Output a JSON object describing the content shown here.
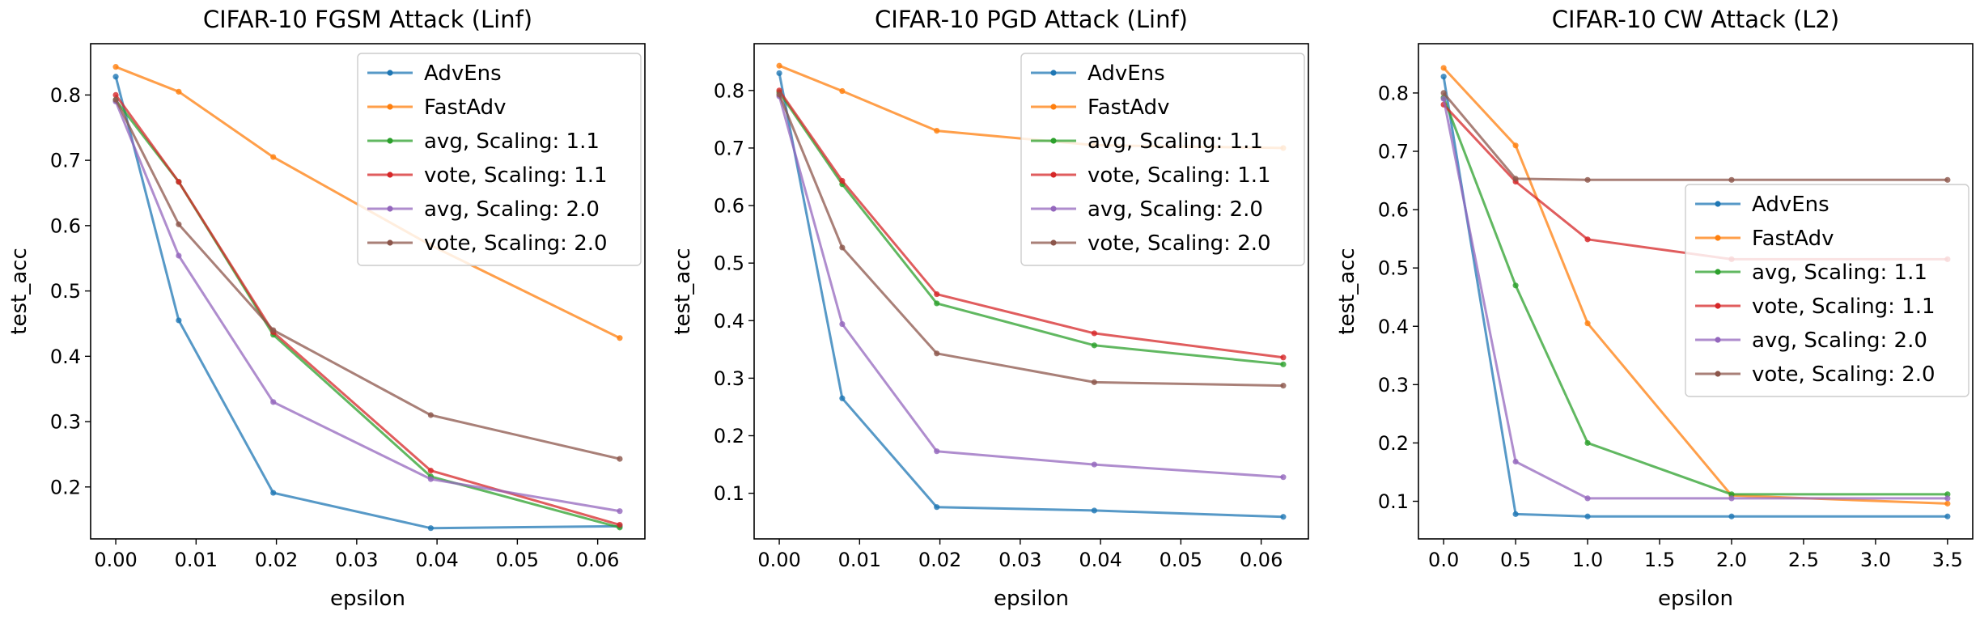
{
  "chart_data": [
    {
      "type": "line",
      "title": "CIFAR-10 FGSM Attack (Linf)",
      "xlabel": "epsilon",
      "ylabel": "test_acc",
      "xlim": [
        -0.00313,
        0.06588
      ],
      "ylim": [
        0.1205,
        0.8785
      ],
      "xticks": [
        "0.00",
        "0.01",
        "0.02",
        "0.03",
        "0.04",
        "0.05",
        "0.06"
      ],
      "yticks": [
        "0.2",
        "0.3",
        "0.4",
        "0.5",
        "0.6",
        "0.7",
        "0.8"
      ],
      "legend_position": "upper right",
      "x": [
        0.0,
        0.00784,
        0.01961,
        0.03922,
        0.06275
      ],
      "series": [
        {
          "name": "AdvEns",
          "color": "#1f77b4",
          "values": [
            0.828,
            0.455,
            0.191,
            0.137,
            0.14
          ]
        },
        {
          "name": "FastAdv",
          "color": "#ff7f0e",
          "values": [
            0.843,
            0.805,
            0.705,
            0.57,
            0.428
          ]
        },
        {
          "name": "avg, Scaling: 1.1",
          "color": "#2ca02c",
          "values": [
            0.792,
            0.667,
            0.433,
            0.216,
            0.138
          ]
        },
        {
          "name": "vote, Scaling: 1.1",
          "color": "#d62728",
          "values": [
            0.8,
            0.667,
            0.437,
            0.225,
            0.142
          ]
        },
        {
          "name": "avg, Scaling: 2.0",
          "color": "#9467bd",
          "values": [
            0.79,
            0.554,
            0.33,
            0.212,
            0.163
          ]
        },
        {
          "name": "vote, Scaling: 2.0",
          "color": "#8c564b",
          "values": [
            0.793,
            0.602,
            0.44,
            0.31,
            0.243
          ]
        }
      ]
    },
    {
      "type": "line",
      "title": "CIFAR-10 PGD Attack (Linf)",
      "xlabel": "epsilon",
      "ylabel": "test_acc",
      "xlim": [
        -0.00313,
        0.06588
      ],
      "ylim": [
        0.0207,
        0.8813
      ],
      "xticks": [
        "0.00",
        "0.01",
        "0.02",
        "0.03",
        "0.04",
        "0.05",
        "0.06"
      ],
      "yticks": [
        "0.1",
        "0.2",
        "0.3",
        "0.4",
        "0.5",
        "0.6",
        "0.7",
        "0.8"
      ],
      "legend_position": "upper right",
      "x": [
        0.0,
        0.00784,
        0.01961,
        0.03922,
        0.06275
      ],
      "series": [
        {
          "name": "AdvEns",
          "color": "#1f77b4",
          "values": [
            0.83,
            0.265,
            0.076,
            0.07,
            0.059
          ]
        },
        {
          "name": "FastAdv",
          "color": "#ff7f0e",
          "values": [
            0.843,
            0.799,
            0.73,
            0.705,
            0.7
          ]
        },
        {
          "name": "avg, Scaling: 1.1",
          "color": "#2ca02c",
          "values": [
            0.797,
            0.637,
            0.43,
            0.357,
            0.324
          ]
        },
        {
          "name": "vote, Scaling: 1.1",
          "color": "#d62728",
          "values": [
            0.8,
            0.643,
            0.446,
            0.378,
            0.336
          ]
        },
        {
          "name": "avg, Scaling: 2.0",
          "color": "#9467bd",
          "values": [
            0.79,
            0.394,
            0.173,
            0.15,
            0.128
          ]
        },
        {
          "name": "vote, Scaling: 2.0",
          "color": "#8c564b",
          "values": [
            0.793,
            0.527,
            0.343,
            0.293,
            0.287
          ]
        }
      ]
    },
    {
      "type": "line",
      "title": "CIFAR-10 CW Attack (L2)",
      "xlabel": "epsilon",
      "ylabel": "test_acc",
      "xlim": [
        -0.175,
        3.675
      ],
      "ylim": [
        0.0355,
        0.8845
      ],
      "xticks": [
        "0.0",
        "0.5",
        "1.0",
        "1.5",
        "2.0",
        "2.5",
        "3.0",
        "3.5"
      ],
      "yticks": [
        "0.1",
        "0.2",
        "0.3",
        "0.4",
        "0.5",
        "0.6",
        "0.7",
        "0.8"
      ],
      "legend_position": "center right",
      "x": [
        0.0,
        0.5,
        1.0,
        2.0,
        3.5
      ],
      "series": [
        {
          "name": "AdvEns",
          "color": "#1f77b4",
          "values": [
            0.828,
            0.078,
            0.074,
            0.074,
            0.074
          ]
        },
        {
          "name": "FastAdv",
          "color": "#ff7f0e",
          "values": [
            0.843,
            0.71,
            0.405,
            0.11,
            0.096
          ]
        },
        {
          "name": "avg, Scaling: 1.1",
          "color": "#2ca02c",
          "values": [
            0.792,
            0.47,
            0.2,
            0.112,
            0.112
          ]
        },
        {
          "name": "vote, Scaling: 1.1",
          "color": "#d62728",
          "values": [
            0.78,
            0.648,
            0.549,
            0.515,
            0.515
          ]
        },
        {
          "name": "avg, Scaling: 2.0",
          "color": "#9467bd",
          "values": [
            0.79,
            0.168,
            0.105,
            0.105,
            0.105
          ]
        },
        {
          "name": "vote, Scaling: 2.0",
          "color": "#8c564b",
          "values": [
            0.8,
            0.653,
            0.651,
            0.651,
            0.651
          ]
        }
      ]
    }
  ]
}
